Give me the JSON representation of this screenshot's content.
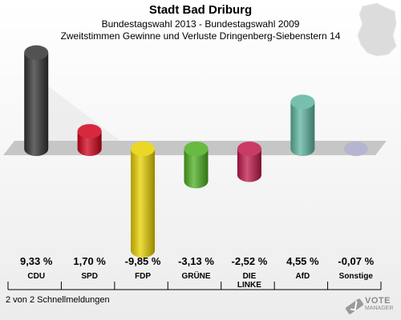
{
  "header": {
    "title": "Stadt Bad Driburg",
    "subtitle": "Bundestagswahl 2013 - Bundestagswahl 2009",
    "subtitle2": "Zweitstimmen Gewinne und Verluste Dringenberg-Siebenstern 14"
  },
  "footer": {
    "note": "2 von 2 Schnellmeldungen"
  },
  "logo": {
    "text": "VOTE",
    "sub": "MANAGER"
  },
  "colors": {
    "CDU": "#333333",
    "SPD": "#d0021b",
    "FDP": "#e8d000",
    "GRÜNE": "#4caf20",
    "DIE LINKE": "#c0184a",
    "AfD": "#5fb5a0",
    "Sonstige": "#a8a8c8"
  },
  "chart_data": {
    "type": "bar",
    "title": "Stadt Bad Driburg",
    "categories": [
      "CDU",
      "SPD",
      "FDP",
      "GRÜNE",
      "DIE LINKE",
      "AfD",
      "Sonstige"
    ],
    "category_labels": [
      "CDU",
      "SPD",
      "FDP",
      "GRÜNE",
      "DIE\nLINKE",
      "AfD",
      "Sonstige"
    ],
    "values": [
      9.33,
      1.7,
      -9.85,
      -3.13,
      -2.52,
      4.55,
      -0.07
    ],
    "value_labels": [
      "9,33 %",
      "1,70 %",
      "-9,85 %",
      "-3,13 %",
      "-2,52 %",
      "4,55 %",
      "-0,07 %"
    ],
    "unit": "%",
    "grid": false,
    "legend": "none"
  }
}
